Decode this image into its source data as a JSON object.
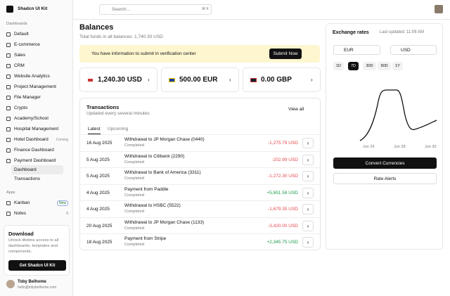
{
  "sidebar": {
    "brand": "Shadcn UI Kit",
    "sections": [
      {
        "title": "Dashboards",
        "items": [
          {
            "label": "Default"
          },
          {
            "label": "E-commerce"
          },
          {
            "label": "Sales"
          },
          {
            "label": "CRM"
          },
          {
            "label": "Website Analytics"
          },
          {
            "label": "Project Management"
          },
          {
            "label": "File Manager"
          },
          {
            "label": "Crypto"
          },
          {
            "label": "Academy/School"
          },
          {
            "label": "Hospital Management"
          },
          {
            "label": "Hotel Dashboard",
            "badge": "Coming"
          },
          {
            "label": "Finance Dashboard"
          },
          {
            "label": "Payment Dashboard",
            "children": [
              "Dashboard",
              "Transactions"
            ]
          }
        ]
      },
      {
        "title": "Apps",
        "items": [
          {
            "label": "Kanban",
            "badge": "New"
          },
          {
            "label": "Notes",
            "badge": "8"
          }
        ]
      }
    ],
    "promo": {
      "title": "Download",
      "text": "Unlock lifetime access to all dashboards, templates and components.",
      "button": "Get Shadcn UI Kit"
    },
    "user": {
      "name": "Toby Belhome",
      "email": "hello@tobybelhome.com"
    }
  },
  "topbar": {
    "search": "Search...",
    "shortcut": "⌘ K"
  },
  "main": {
    "title": "Balances",
    "subtitle": "Total funds in all balances: 1,740.30 USD",
    "alert": {
      "text": "You have information to submit in verification center",
      "button": "Submit Now"
    },
    "balances": [
      "1,240.30 USD",
      "500.00 EUR",
      "0.00 GBP"
    ],
    "transactions": {
      "title": "Transactions",
      "subtitle": "Updated every several minutes",
      "view_all": "View all",
      "tabs": [
        "Latest",
        "Upcoming"
      ],
      "rows": [
        [
          "16 Aug 2025",
          "Withdrawal to JP Morgan Chase (0440)",
          "Completed",
          "-1,275.79 USD"
        ],
        [
          "5 Aug 2025",
          "Withdrawal to Citibank (2290)",
          "Completed",
          "-202.99 USD"
        ],
        [
          "5 Aug 2025",
          "Withdrawal to Bank of America (3311)",
          "Completed",
          "-1,272.30 USD"
        ],
        [
          "4 Aug 2025",
          "Payment from Paddle",
          "Completed",
          "+5,651.58 USD"
        ],
        [
          "4 Aug 2025",
          "Withdrawal to HSBC (5522)",
          "Completed",
          "-1,679.35 USD"
        ],
        [
          "20 Aug 2025",
          "Withdrawal to JP Morgan Chase (1133)",
          "Completed",
          "-3,420.00 USD"
        ],
        [
          "18 Aug 2025",
          "Payment from Stripe",
          "Completed",
          "+2,345.75 USD"
        ]
      ]
    }
  },
  "exchange": {
    "title": "Exchange rates",
    "updated": "Last updated: 11:08 AM",
    "from": "EUR",
    "to": "USD",
    "ranges": [
      "1D",
      "7D",
      "30D",
      "90D",
      "1Y"
    ],
    "x_labels": [
      "Jun 26",
      "Jun 28",
      "Jun 30"
    ],
    "convert": "Convert Currencies",
    "alerts": "Rate Alerts"
  }
}
